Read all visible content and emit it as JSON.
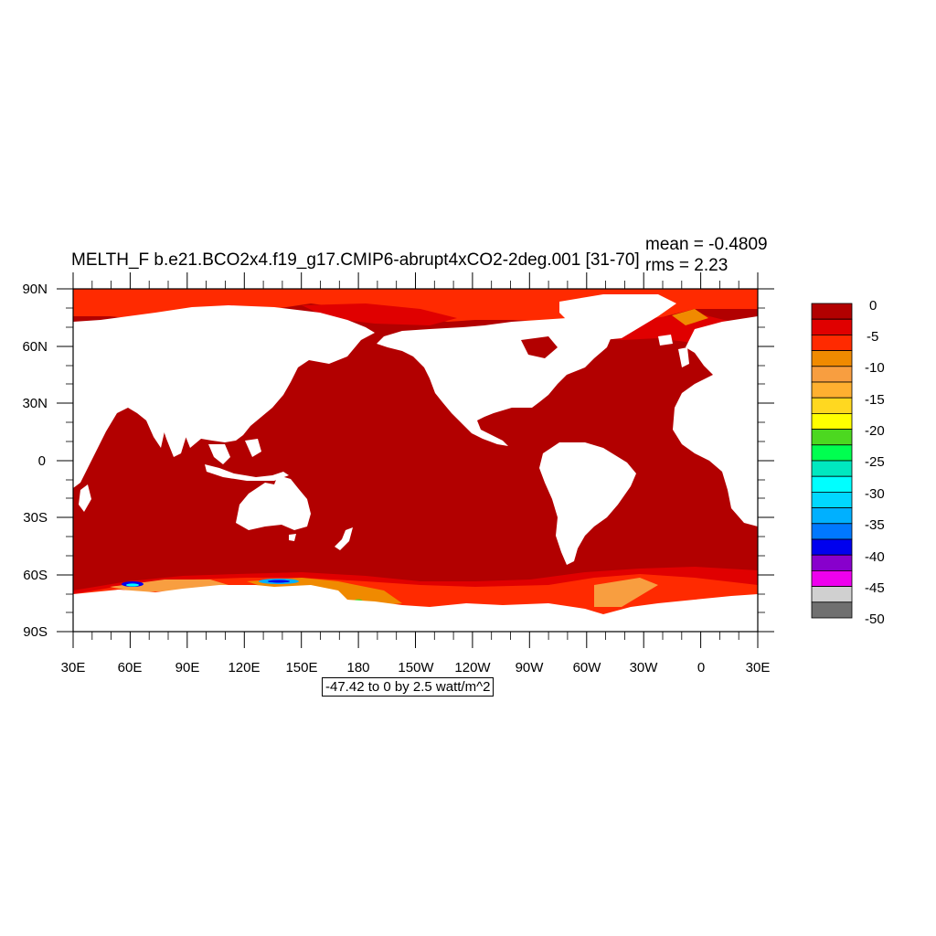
{
  "title": "MELTH_F b.e21.BCO2x4.f19_g17.CMIP6-abrupt4xCO2-2deg.001 [31-70]",
  "stats": {
    "mean": "mean = -0.4809",
    "rms": "rms = 2.23"
  },
  "range_text": "-47.42 to 0 by 2.5 watt/m^2",
  "lat_ticks": [
    "90N",
    "60N",
    "30N",
    "0",
    "30S",
    "60S",
    "90S"
  ],
  "lon_ticks": [
    "30E",
    "60E",
    "90E",
    "120E",
    "150E",
    "180",
    "150W",
    "120W",
    "90W",
    "60W",
    "30W",
    "0",
    "30E"
  ],
  "colorbar": {
    "labels": [
      "0",
      "-5",
      "-10",
      "-15",
      "-20",
      "-25",
      "-30",
      "-35",
      "-40",
      "-45",
      "-50"
    ],
    "colors": [
      "#b20000",
      "#e00000",
      "#ff2a00",
      "#f08a00",
      "#f89e40",
      "#ffb030",
      "#ffd820",
      "#ffff00",
      "#4cd820",
      "#00ff50",
      "#00e8c0",
      "#00ffff",
      "#00d8ff",
      "#00b0ff",
      "#0078ff",
      "#0000ee",
      "#8800cc",
      "#ee00ee",
      "#d0d0d0",
      "#707070"
    ]
  },
  "colors": {
    "ocean": "#b20000",
    "land": "#ffffff",
    "ice_edge": "#ff2a00",
    "ice_mid": "#e00000",
    "ice_orange": "#f08a00"
  },
  "chart_data": {
    "type": "heatmap",
    "variable": "MELTH_F",
    "units": "watt/m^2",
    "lon_range": [
      30,
      390
    ],
    "lat_range": [
      -90,
      90
    ],
    "contour_min": -47.42,
    "contour_max": 0,
    "contour_interval": 2.5
  }
}
